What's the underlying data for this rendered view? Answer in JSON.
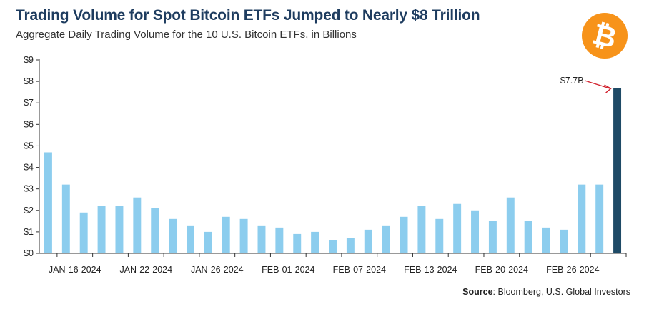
{
  "header": {
    "title": "Trading Volume for Spot Bitcoin ETFs Jumped to Nearly $8 Trillion",
    "subtitle": "Aggregate Daily Trading Volume for the 10 U.S. Bitcoin ETFs, in Billions"
  },
  "logo": {
    "icon": "bitcoin-icon",
    "color": "#f7931a"
  },
  "source": {
    "label": "Source",
    "text": ": Bloomberg, U.S. Global Investors"
  },
  "chart_data": {
    "type": "bar",
    "title": "Trading Volume for Spot Bitcoin ETFs Jumped to Nearly $8 Trillion",
    "subtitle": "Aggregate Daily Trading Volume for the 10 U.S. Bitcoin ETFs, in Billions",
    "xlabel": "",
    "ylabel": "",
    "ylim": [
      0,
      9
    ],
    "y_ticks": [
      "$0",
      "$1",
      "$2",
      "$3",
      "$4",
      "$5",
      "$6",
      "$7",
      "$8",
      "$9"
    ],
    "x_tick_labels": [
      "JAN-16-2024",
      "JAN-22-2024",
      "JAN-26-2024",
      "FEB-01-2024",
      "FEB-07-2024",
      "FEB-13-2024",
      "FEB-20-2024",
      "FEB-26-2024"
    ],
    "values": [
      4.7,
      3.2,
      1.9,
      2.2,
      2.2,
      2.6,
      2.1,
      1.6,
      1.3,
      1.0,
      1.7,
      1.6,
      1.3,
      1.2,
      0.9,
      1.0,
      0.6,
      0.7,
      1.1,
      1.3,
      1.7,
      2.2,
      1.6,
      2.3,
      2.0,
      1.5,
      2.6,
      1.5,
      1.2,
      1.1,
      3.2,
      3.2,
      7.7
    ],
    "bar_color": "#8ccdee",
    "highlight_color": "#1e4a66",
    "highlight_index": 32,
    "annotation": {
      "text": "$7.7B",
      "index": 32,
      "arrow_color": "#d11f2b"
    },
    "grid": false
  }
}
